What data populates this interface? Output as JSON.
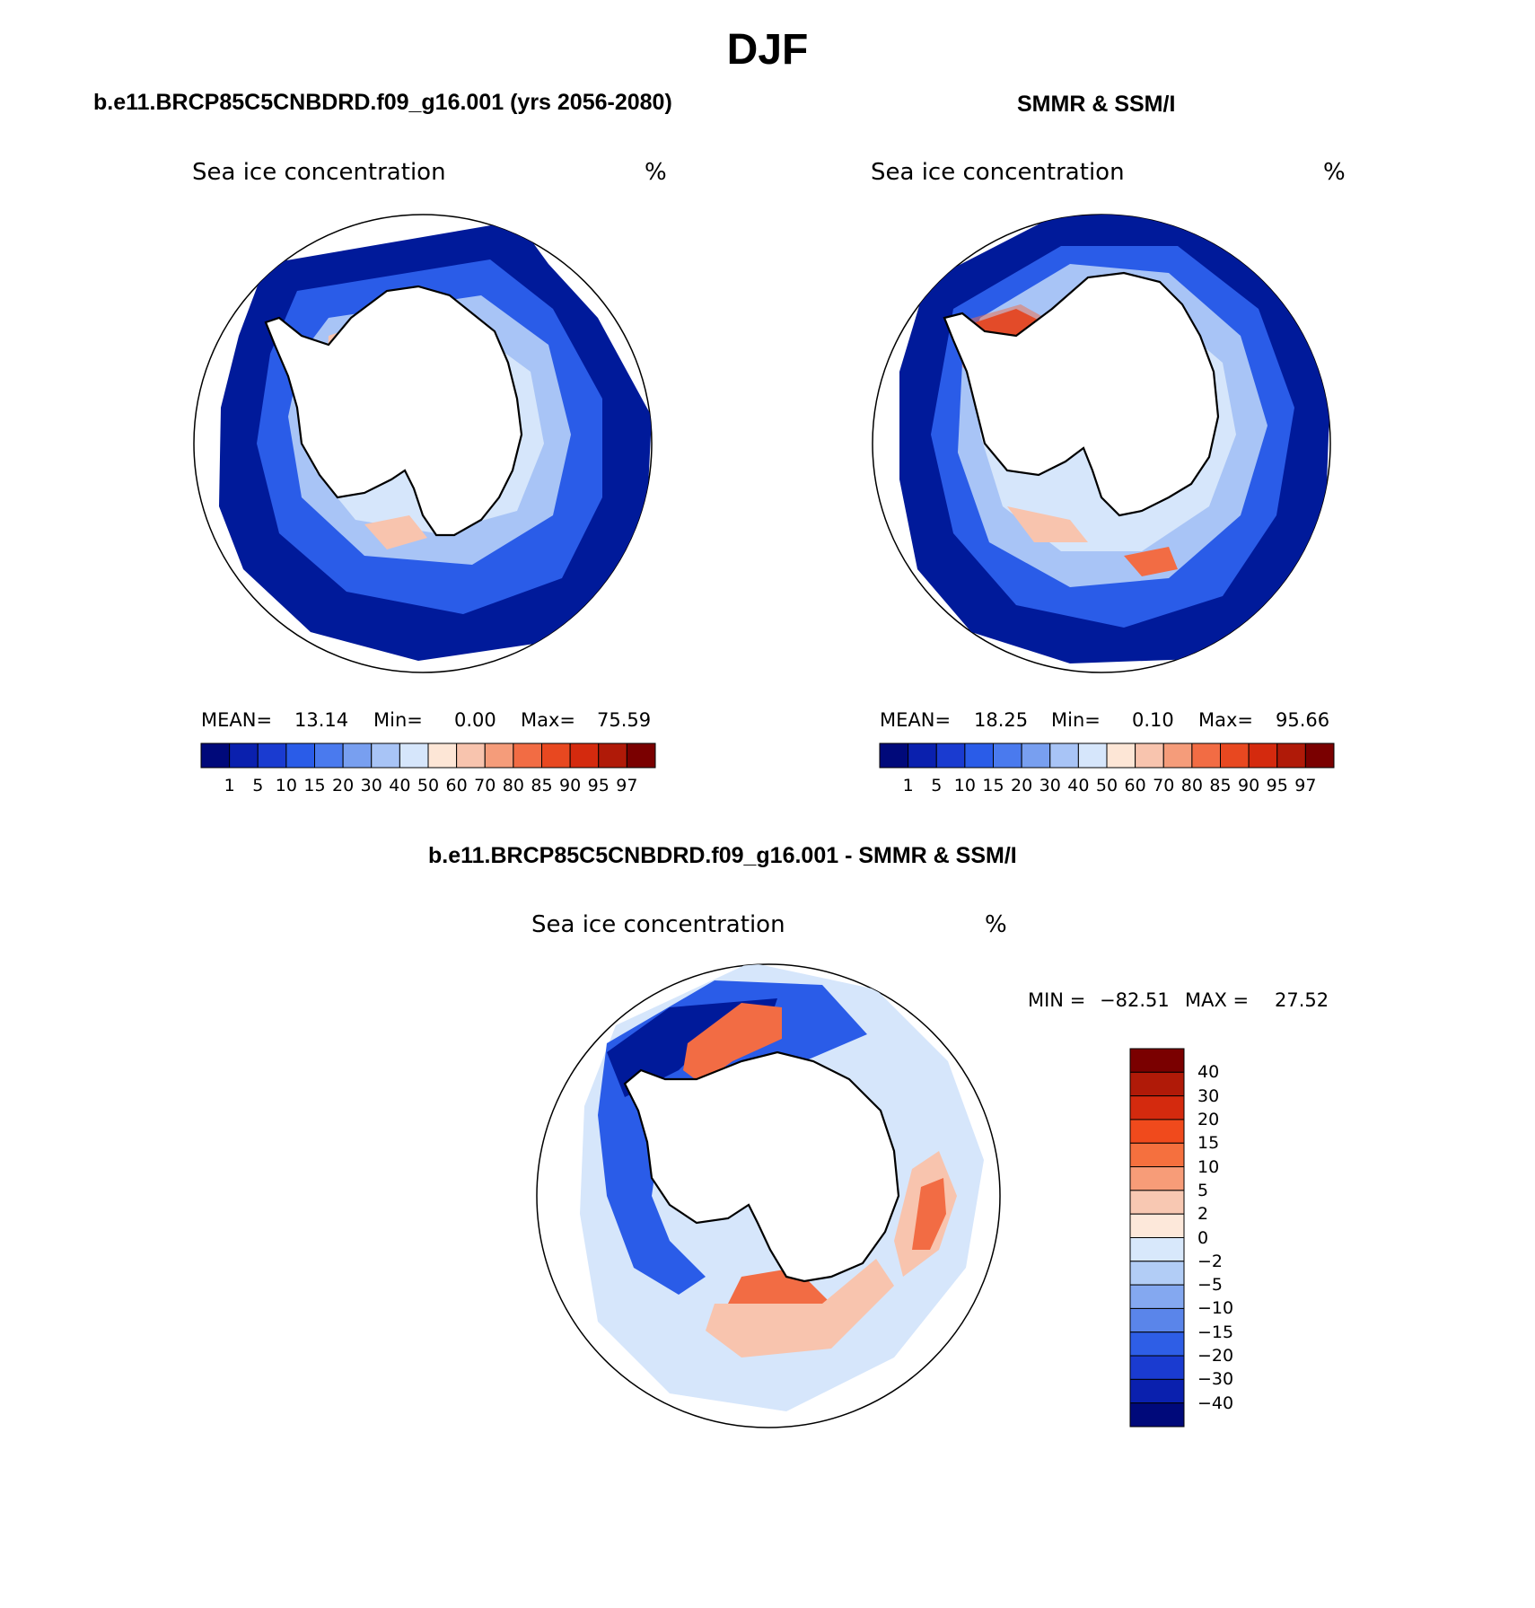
{
  "page_title": "DJF",
  "panels": [
    {
      "subtitle": "b.e11.BRCP85C5CNBDRD.f09_g16.001 (yrs 2056-2080)",
      "field_label": "Sea ice concentration",
      "unit": "%",
      "stats": {
        "mean_label": "MEAN=",
        "mean": "13.14",
        "min_label": "Min=",
        "min": "0.00",
        "max_label": "Max=",
        "max": "75.59"
      }
    },
    {
      "subtitle": "SMMR & SSM/I",
      "field_label": "Sea ice concentration",
      "unit": "%",
      "stats": {
        "mean_label": "MEAN=",
        "mean": "18.25",
        "min_label": "Min=",
        "min": "0.10",
        "max_label": "Max=",
        "max": "95.66"
      }
    }
  ],
  "diff_panel": {
    "subtitle": "b.e11.BRCP85C5CNBDRD.f09_g16.001 - SMMR & SSM/I",
    "field_label": "Sea ice concentration",
    "unit": "%",
    "min_label": "MIN =",
    "min": "−82.51",
    "max_label": "MAX =",
    "max": "27.52"
  },
  "concentration_colorbar": {
    "colors": [
      "#00097a",
      "#0a20ae",
      "#1a3bd0",
      "#2a5ce8",
      "#4a7aee",
      "#789ff0",
      "#a8c4f6",
      "#d6e6fb",
      "#fde6d6",
      "#f8c4ae",
      "#f59c7a",
      "#f26c44",
      "#e84820",
      "#d42a0e",
      "#b01a08",
      "#7a0000"
    ],
    "tick_labels": [
      "1",
      "5",
      "10",
      "15",
      "20",
      "30",
      "40",
      "50",
      "60",
      "70",
      "80",
      "85",
      "90",
      "95",
      "97"
    ]
  },
  "difference_colorbar": {
    "colors_top_to_bottom": [
      "#7a0000",
      "#b01a08",
      "#d42a0e",
      "#f04a1c",
      "#f5703e",
      "#f79c78",
      "#f8c8b2",
      "#fde8da",
      "#d8e8fb",
      "#b2cdf6",
      "#84a8f0",
      "#5a85ea",
      "#2e5ee6",
      "#1a3bd0",
      "#0a20ae",
      "#00097a"
    ],
    "tick_labels_top_to_bottom": [
      "40",
      "30",
      "20",
      "15",
      "10",
      "5",
      "2",
      "0",
      "−2",
      "−5",
      "−10",
      "−15",
      "−20",
      "−30",
      "−40"
    ]
  },
  "map_colors": {
    "dark_blue": "#001a9a",
    "mid_blue": "#2a5ce8",
    "light_blue": "#a8c4f6",
    "pale_blue": "#d6e6fb",
    "light_red": "#f8c4ae",
    "red": "#f26c44",
    "dark_red": "#d42a0e",
    "land": "#ffffff"
  }
}
